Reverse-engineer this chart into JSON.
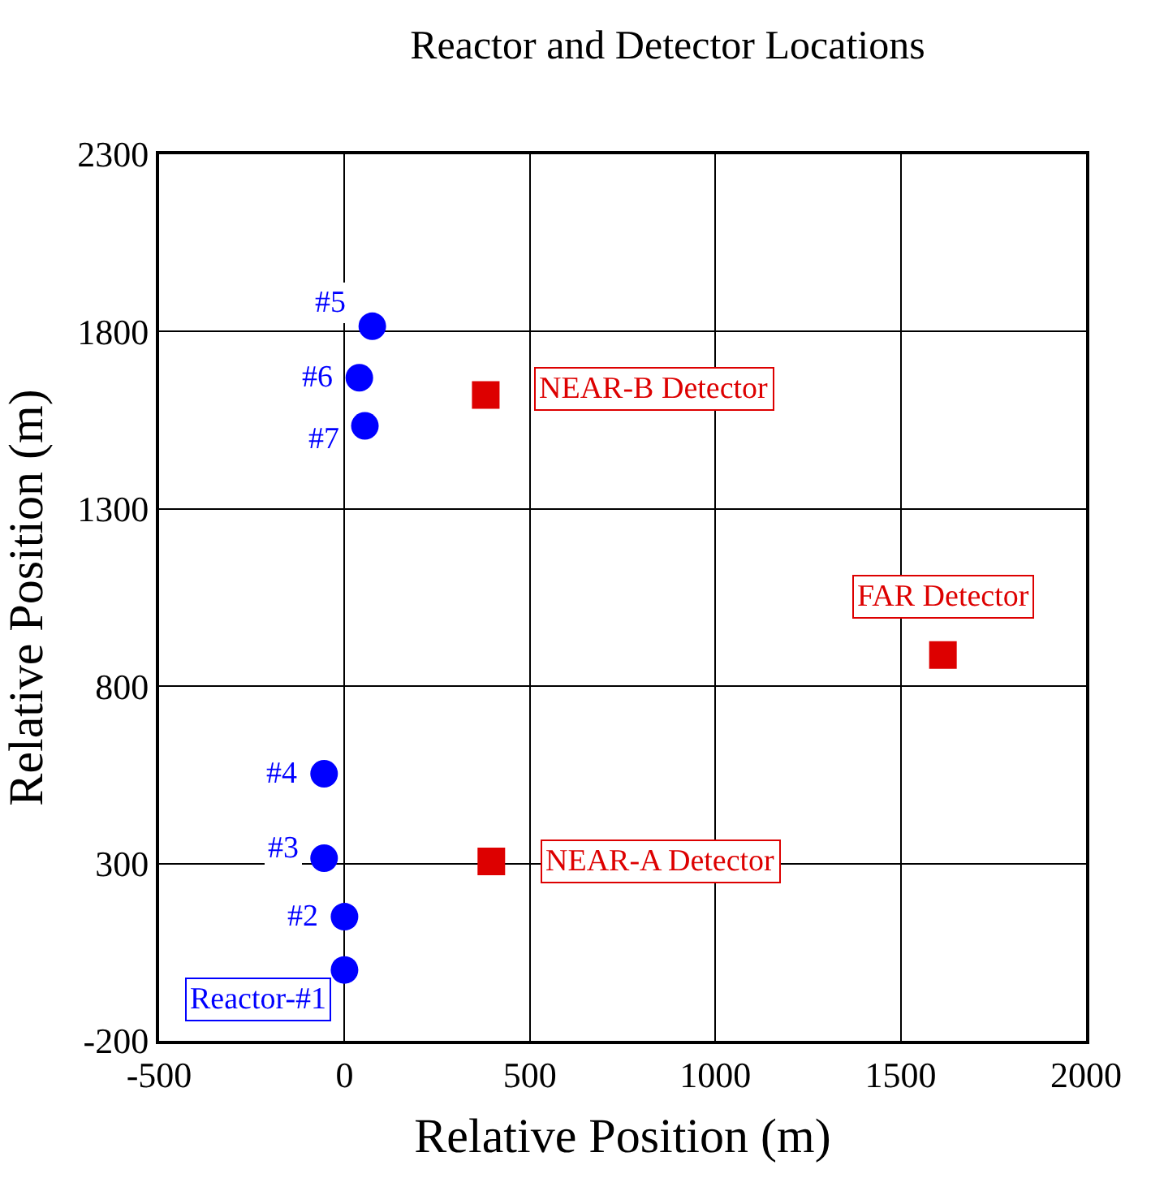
{
  "chart_data": {
    "type": "scatter",
    "title": "Reactor and Detector Locations",
    "xlabel": "Relative Position (m)",
    "ylabel": "Relative Position (m)",
    "series": [
      {
        "color": "#0000ff",
        "marker": "circle",
        "x": [
          0,
          0,
          -55,
          -55,
          75,
          40,
          55
        ],
        "values": [
          0,
          150,
          315,
          553,
          1815,
          1670,
          1534
        ]
      },
      {
        "color": "#dd0000",
        "marker": "square",
        "x": [
          381,
          1614,
          396
        ],
        "values": [
          1621,
          888,
          306
        ]
      }
    ],
    "annotations": [
      {
        "text": "Reactor-#1",
        "x": 0,
        "y": 0
      },
      {
        "text": "#2",
        "x": 0,
        "y": 150
      },
      {
        "text": "#3",
        "x": -55,
        "y": 315
      },
      {
        "text": "#4",
        "x": -55,
        "y": 553
      },
      {
        "text": "#5",
        "x": 75,
        "y": 1815
      },
      {
        "text": "#6",
        "x": 40,
        "y": 1670
      },
      {
        "text": "#7",
        "x": 55,
        "y": 1534
      },
      {
        "text": "NEAR-B Detector",
        "x": 381,
        "y": 1621
      },
      {
        "text": "FAR Detector",
        "x": 1614,
        "y": 888
      },
      {
        "text": "NEAR-A Detector",
        "x": 396,
        "y": 306
      }
    ],
    "xlim": [
      -500,
      2000
    ],
    "xticks": [
      -500,
      0,
      500,
      1000,
      1500,
      2000
    ],
    "ylim": [
      -200,
      2300
    ],
    "yticks": [
      -200,
      300,
      800,
      1300,
      1800,
      2300
    ],
    "grid": true
  }
}
